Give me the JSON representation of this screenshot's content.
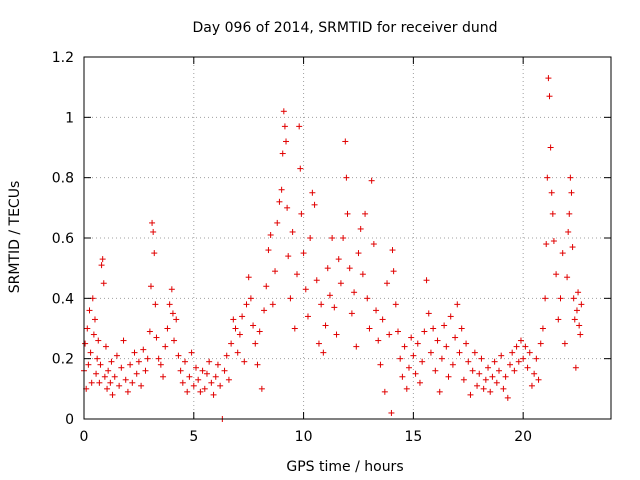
{
  "chart_data": {
    "type": "scatter",
    "title": "Day 096 of 2014, SRMTID for receiver dund",
    "xlabel": "GPS time / hours",
    "ylabel": "SRMTID / TECUs",
    "xlim": [
      0,
      24
    ],
    "ylim": [
      0,
      1.2
    ],
    "xticks": [
      "0",
      "5",
      "10",
      "15",
      "20"
    ],
    "yticks": [
      "0",
      "0.2",
      "0.4",
      "0.6",
      "0.8",
      "1",
      "1.2"
    ],
    "xtick_values": [
      0,
      5,
      10,
      15,
      20
    ],
    "ytick_values": [
      0,
      0.2,
      0.4,
      0.6,
      0.8,
      1.0,
      1.2
    ],
    "grid": true,
    "marker": "plus",
    "color": "#e00000",
    "series": [
      {
        "name": "SRMTID",
        "points": [
          [
            0.0,
            0.16
          ],
          [
            0.05,
            0.25
          ],
          [
            0.1,
            0.1
          ],
          [
            0.15,
            0.3
          ],
          [
            0.2,
            0.18
          ],
          [
            0.25,
            0.36
          ],
          [
            0.3,
            0.22
          ],
          [
            0.35,
            0.12
          ],
          [
            0.4,
            0.4
          ],
          [
            0.45,
            0.28
          ],
          [
            0.5,
            0.33
          ],
          [
            0.55,
            0.15
          ],
          [
            0.6,
            0.2
          ],
          [
            0.65,
            0.26
          ],
          [
            0.7,
            0.12
          ],
          [
            0.75,
            0.18
          ],
          [
            0.8,
            0.51
          ],
          [
            0.85,
            0.53
          ],
          [
            0.9,
            0.45
          ],
          [
            0.95,
            0.14
          ],
          [
            1.0,
            0.24
          ],
          [
            1.05,
            0.1
          ],
          [
            1.1,
            0.16
          ],
          [
            1.2,
            0.12
          ],
          [
            1.25,
            0.19
          ],
          [
            1.3,
            0.08
          ],
          [
            1.4,
            0.14
          ],
          [
            1.5,
            0.21
          ],
          [
            1.6,
            0.11
          ],
          [
            1.7,
            0.17
          ],
          [
            1.8,
            0.26
          ],
          [
            1.9,
            0.13
          ],
          [
            2.0,
            0.09
          ],
          [
            2.1,
            0.18
          ],
          [
            2.2,
            0.12
          ],
          [
            2.3,
            0.22
          ],
          [
            2.4,
            0.15
          ],
          [
            2.5,
            0.19
          ],
          [
            2.6,
            0.11
          ],
          [
            2.7,
            0.23
          ],
          [
            2.8,
            0.16
          ],
          [
            2.9,
            0.2
          ],
          [
            3.0,
            0.29
          ],
          [
            3.05,
            0.44
          ],
          [
            3.1,
            0.65
          ],
          [
            3.15,
            0.62
          ],
          [
            3.2,
            0.55
          ],
          [
            3.25,
            0.38
          ],
          [
            3.3,
            0.27
          ],
          [
            3.4,
            0.2
          ],
          [
            3.5,
            0.18
          ],
          [
            3.6,
            0.14
          ],
          [
            3.7,
            0.24
          ],
          [
            3.8,
            0.3
          ],
          [
            3.9,
            0.38
          ],
          [
            4.0,
            0.43
          ],
          [
            4.05,
            0.35
          ],
          [
            4.1,
            0.26
          ],
          [
            4.2,
            0.33
          ],
          [
            4.3,
            0.21
          ],
          [
            4.4,
            0.16
          ],
          [
            4.5,
            0.12
          ],
          [
            4.6,
            0.19
          ],
          [
            4.7,
            0.09
          ],
          [
            4.8,
            0.14
          ],
          [
            4.9,
            0.22
          ],
          [
            5.0,
            0.11
          ],
          [
            5.1,
            0.17
          ],
          [
            5.2,
            0.13
          ],
          [
            5.3,
            0.09
          ],
          [
            5.4,
            0.16
          ],
          [
            5.5,
            0.1
          ],
          [
            5.6,
            0.15
          ],
          [
            5.7,
            0.19
          ],
          [
            5.8,
            0.12
          ],
          [
            5.9,
            0.08
          ],
          [
            6.0,
            0.14
          ],
          [
            6.1,
            0.18
          ],
          [
            6.2,
            0.11
          ],
          [
            6.3,
            0.0
          ],
          [
            6.4,
            0.16
          ],
          [
            6.5,
            0.21
          ],
          [
            6.6,
            0.13
          ],
          [
            6.7,
            0.25
          ],
          [
            6.8,
            0.33
          ],
          [
            6.9,
            0.3
          ],
          [
            7.0,
            0.22
          ],
          [
            7.1,
            0.28
          ],
          [
            7.2,
            0.34
          ],
          [
            7.3,
            0.19
          ],
          [
            7.4,
            0.38
          ],
          [
            7.5,
            0.47
          ],
          [
            7.6,
            0.4
          ],
          [
            7.7,
            0.31
          ],
          [
            7.8,
            0.25
          ],
          [
            7.9,
            0.18
          ],
          [
            8.0,
            0.29
          ],
          [
            8.1,
            0.1
          ],
          [
            8.2,
            0.36
          ],
          [
            8.3,
            0.44
          ],
          [
            8.4,
            0.56
          ],
          [
            8.5,
            0.61
          ],
          [
            8.6,
            0.38
          ],
          [
            8.7,
            0.49
          ],
          [
            8.8,
            0.65
          ],
          [
            8.9,
            0.72
          ],
          [
            9.0,
            0.76
          ],
          [
            9.05,
            0.88
          ],
          [
            9.1,
            1.02
          ],
          [
            9.15,
            0.97
          ],
          [
            9.2,
            0.92
          ],
          [
            9.25,
            0.7
          ],
          [
            9.3,
            0.54
          ],
          [
            9.4,
            0.4
          ],
          [
            9.5,
            0.62
          ],
          [
            9.6,
            0.3
          ],
          [
            9.7,
            0.48
          ],
          [
            9.8,
            0.97
          ],
          [
            9.85,
            0.83
          ],
          [
            9.9,
            0.68
          ],
          [
            10.0,
            0.55
          ],
          [
            10.1,
            0.43
          ],
          [
            10.2,
            0.34
          ],
          [
            10.3,
            0.6
          ],
          [
            10.4,
            0.75
          ],
          [
            10.5,
            0.71
          ],
          [
            10.6,
            0.46
          ],
          [
            10.7,
            0.25
          ],
          [
            10.8,
            0.38
          ],
          [
            10.9,
            0.22
          ],
          [
            11.0,
            0.31
          ],
          [
            11.1,
            0.5
          ],
          [
            11.2,
            0.41
          ],
          [
            11.3,
            0.6
          ],
          [
            11.4,
            0.37
          ],
          [
            11.5,
            0.28
          ],
          [
            11.6,
            0.53
          ],
          [
            11.7,
            0.45
          ],
          [
            11.8,
            0.6
          ],
          [
            11.9,
            0.92
          ],
          [
            11.95,
            0.8
          ],
          [
            12.0,
            0.68
          ],
          [
            12.1,
            0.5
          ],
          [
            12.2,
            0.35
          ],
          [
            12.3,
            0.42
          ],
          [
            12.4,
            0.24
          ],
          [
            12.5,
            0.55
          ],
          [
            12.6,
            0.63
          ],
          [
            12.7,
            0.48
          ],
          [
            12.8,
            0.68
          ],
          [
            12.9,
            0.4
          ],
          [
            13.0,
            0.3
          ],
          [
            13.1,
            0.79
          ],
          [
            13.2,
            0.58
          ],
          [
            13.3,
            0.36
          ],
          [
            13.4,
            0.26
          ],
          [
            13.5,
            0.18
          ],
          [
            13.6,
            0.33
          ],
          [
            13.7,
            0.09
          ],
          [
            13.8,
            0.45
          ],
          [
            13.9,
            0.28
          ],
          [
            14.0,
            0.02
          ],
          [
            14.05,
            0.56
          ],
          [
            14.1,
            0.49
          ],
          [
            14.2,
            0.38
          ],
          [
            14.3,
            0.29
          ],
          [
            14.4,
            0.2
          ],
          [
            14.5,
            0.14
          ],
          [
            14.6,
            0.24
          ],
          [
            14.7,
            0.1
          ],
          [
            14.8,
            0.17
          ],
          [
            14.9,
            0.27
          ],
          [
            15.0,
            0.21
          ],
          [
            15.1,
            0.15
          ],
          [
            15.2,
            0.25
          ],
          [
            15.3,
            0.12
          ],
          [
            15.4,
            0.19
          ],
          [
            15.5,
            0.29
          ],
          [
            15.6,
            0.46
          ],
          [
            15.7,
            0.35
          ],
          [
            15.8,
            0.22
          ],
          [
            15.9,
            0.3
          ],
          [
            16.0,
            0.16
          ],
          [
            16.1,
            0.26
          ],
          [
            16.2,
            0.09
          ],
          [
            16.3,
            0.2
          ],
          [
            16.4,
            0.31
          ],
          [
            16.5,
            0.24
          ],
          [
            16.6,
            0.14
          ],
          [
            16.7,
            0.34
          ],
          [
            16.8,
            0.18
          ],
          [
            16.9,
            0.27
          ],
          [
            17.0,
            0.38
          ],
          [
            17.1,
            0.22
          ],
          [
            17.2,
            0.3
          ],
          [
            17.3,
            0.13
          ],
          [
            17.4,
            0.25
          ],
          [
            17.5,
            0.19
          ],
          [
            17.6,
            0.08
          ],
          [
            17.7,
            0.16
          ],
          [
            17.8,
            0.22
          ],
          [
            17.9,
            0.11
          ],
          [
            18.0,
            0.15
          ],
          [
            18.1,
            0.2
          ],
          [
            18.2,
            0.1
          ],
          [
            18.3,
            0.13
          ],
          [
            18.4,
            0.17
          ],
          [
            18.5,
            0.09
          ],
          [
            18.6,
            0.14
          ],
          [
            18.7,
            0.19
          ],
          [
            18.8,
            0.12
          ],
          [
            18.9,
            0.16
          ],
          [
            19.0,
            0.21
          ],
          [
            19.1,
            0.1
          ],
          [
            19.2,
            0.14
          ],
          [
            19.3,
            0.07
          ],
          [
            19.4,
            0.18
          ],
          [
            19.5,
            0.22
          ],
          [
            19.6,
            0.16
          ],
          [
            19.7,
            0.24
          ],
          [
            19.8,
            0.19
          ],
          [
            19.9,
            0.26
          ],
          [
            20.0,
            0.2
          ],
          [
            20.1,
            0.24
          ],
          [
            20.2,
            0.17
          ],
          [
            20.3,
            0.22
          ],
          [
            20.4,
            0.11
          ],
          [
            20.5,
            0.15
          ],
          [
            20.6,
            0.2
          ],
          [
            20.7,
            0.13
          ],
          [
            20.8,
            0.25
          ],
          [
            20.9,
            0.3
          ],
          [
            21.0,
            0.4
          ],
          [
            21.05,
            0.58
          ],
          [
            21.1,
            0.8
          ],
          [
            21.15,
            1.13
          ],
          [
            21.2,
            1.07
          ],
          [
            21.25,
            0.9
          ],
          [
            21.3,
            0.75
          ],
          [
            21.35,
            0.68
          ],
          [
            21.4,
            0.59
          ],
          [
            21.5,
            0.48
          ],
          [
            21.6,
            0.33
          ],
          [
            21.7,
            0.4
          ],
          [
            21.8,
            0.55
          ],
          [
            21.9,
            0.25
          ],
          [
            22.0,
            0.47
          ],
          [
            22.05,
            0.62
          ],
          [
            22.1,
            0.68
          ],
          [
            22.15,
            0.8
          ],
          [
            22.2,
            0.75
          ],
          [
            22.25,
            0.57
          ],
          [
            22.3,
            0.4
          ],
          [
            22.35,
            0.33
          ],
          [
            22.4,
            0.17
          ],
          [
            22.45,
            0.36
          ],
          [
            22.5,
            0.42
          ],
          [
            22.55,
            0.31
          ],
          [
            22.6,
            0.28
          ],
          [
            22.65,
            0.38
          ]
        ]
      }
    ]
  }
}
